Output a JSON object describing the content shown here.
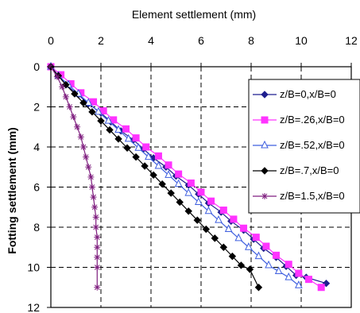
{
  "chart_data": {
    "type": "line",
    "title": "",
    "xlabel": "Element settlement (mm)",
    "ylabel": "Fotting settlement (mm)",
    "x_axis_position": "top",
    "y_axis_inverted": true,
    "xlim": [
      0,
      12
    ],
    "ylim": [
      0,
      12
    ],
    "xticks": [
      "0",
      "2",
      "4",
      "6",
      "8",
      "10",
      "12"
    ],
    "yticks": [
      "0",
      "2",
      "4",
      "6",
      "8",
      "10",
      "12"
    ],
    "grid": "dashed",
    "legend_position": "right",
    "series": [
      {
        "name": "z/B=0,x/B=0",
        "color": "#1f1f8f",
        "marker": "diamond",
        "x": [
          0,
          0.3,
          0.6,
          1.1,
          1.5,
          2.0,
          2.4,
          2.8,
          3.3,
          3.7,
          4.1,
          4.6,
          5.0,
          5.5,
          5.9,
          6.3,
          6.8,
          7.2,
          7.7,
          8.1,
          8.5,
          9.0,
          9.4,
          9.8,
          10.2,
          11.0
        ],
        "y": [
          0,
          0.45,
          0.9,
          1.4,
          1.85,
          2.3,
          2.75,
          3.2,
          3.65,
          4.1,
          4.55,
          5.0,
          5.45,
          5.9,
          6.35,
          6.8,
          7.25,
          7.7,
          8.15,
          8.6,
          9.05,
          9.5,
          9.95,
          10.4,
          10.5,
          10.8
        ]
      },
      {
        "name": "z/B=.26,x/B=0",
        "color": "#ff33ff",
        "marker": "square",
        "x": [
          0,
          0.4,
          0.8,
          1.2,
          1.7,
          2.1,
          2.5,
          3.0,
          3.4,
          3.8,
          4.3,
          4.7,
          5.1,
          5.6,
          6.0,
          6.4,
          6.9,
          7.3,
          7.7,
          8.2,
          8.6,
          9.0,
          9.5,
          9.9,
          10.3,
          10.8
        ],
        "y": [
          0,
          0.4,
          0.85,
          1.3,
          1.75,
          2.2,
          2.65,
          3.1,
          3.55,
          4.0,
          4.45,
          4.9,
          5.35,
          5.8,
          6.25,
          6.7,
          7.15,
          7.6,
          8.05,
          8.5,
          8.95,
          9.4,
          9.85,
          10.3,
          10.6,
          11.0
        ]
      },
      {
        "name": "z/B=.52,x/B=0",
        "color": "#3f5fdf",
        "marker": "triangle",
        "x": [
          0,
          0.3,
          0.7,
          1.1,
          1.5,
          1.9,
          2.3,
          2.7,
          3.1,
          3.5,
          3.9,
          4.3,
          4.7,
          5.1,
          5.5,
          5.9,
          6.3,
          6.7,
          7.1,
          7.5,
          7.9,
          8.3,
          8.7,
          9.1,
          9.5,
          9.9
        ],
        "y": [
          0,
          0.45,
          0.9,
          1.35,
          1.8,
          2.25,
          2.7,
          3.15,
          3.6,
          4.05,
          4.5,
          4.95,
          5.4,
          5.85,
          6.3,
          6.75,
          7.2,
          7.65,
          8.1,
          8.55,
          9.0,
          9.45,
          9.9,
          10.2,
          10.5,
          10.9
        ]
      },
      {
        "name": "z/B=.7,x/B=0",
        "color": "#000000",
        "marker": "diamond",
        "x": [
          0,
          0.3,
          0.6,
          0.95,
          1.3,
          1.65,
          2.0,
          2.35,
          2.7,
          3.05,
          3.4,
          3.75,
          4.1,
          4.45,
          4.8,
          5.15,
          5.5,
          5.85,
          6.2,
          6.55,
          6.9,
          7.25,
          7.6,
          7.95,
          8.3
        ],
        "y": [
          0,
          0.45,
          0.9,
          1.35,
          1.8,
          2.25,
          2.7,
          3.15,
          3.6,
          4.05,
          4.5,
          4.95,
          5.4,
          5.85,
          6.3,
          6.75,
          7.2,
          7.65,
          8.1,
          8.55,
          9.0,
          9.45,
          9.9,
          10.1,
          11.0
        ]
      },
      {
        "name": "z/B=1.5,x/B=0",
        "color": "#7f1f7f",
        "marker": "star",
        "x": [
          0,
          0.25,
          0.45,
          0.6,
          0.75,
          0.9,
          1.05,
          1.2,
          1.3,
          1.4,
          1.5,
          1.6,
          1.65,
          1.7,
          1.75,
          1.8,
          1.8,
          1.85,
          1.85,
          1.85,
          1.85,
          1.85
        ],
        "y": [
          0,
          0.5,
          1.0,
          1.5,
          2.0,
          2.5,
          3.0,
          3.5,
          4.0,
          4.5,
          5.0,
          5.5,
          6.0,
          6.5,
          7.0,
          7.5,
          8.0,
          8.5,
          9.0,
          9.5,
          10.0,
          11.0
        ]
      }
    ]
  }
}
